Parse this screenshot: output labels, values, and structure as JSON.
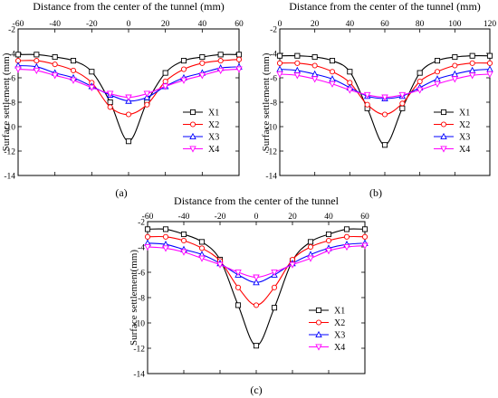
{
  "figure": {
    "background": "#ffffff"
  },
  "chart_data": [
    {
      "type": "line",
      "panel_label": "(a)",
      "title": "Distance from the center of the tunnel (mm)",
      "ylabel": "Surface settlement (mm)",
      "xlabel": "",
      "xlim": [
        -60,
        60
      ],
      "ylim": [
        -14,
        -2
      ],
      "xticks": [
        -60,
        -40,
        -20,
        0,
        20,
        40,
        60
      ],
      "yticks": [
        -2,
        -4,
        -6,
        -8,
        -10,
        -12,
        -14
      ],
      "legend_position": "bottom-right",
      "grid": false,
      "series": [
        {
          "name": "X1",
          "color": "#000000",
          "marker": "square",
          "x": [
            -60,
            -50,
            -40,
            -30,
            -20,
            -10,
            0,
            10,
            20,
            30,
            40,
            50,
            60
          ],
          "y": [
            -4.1,
            -4.1,
            -4.3,
            -4.6,
            -5.5,
            -8.0,
            -11.2,
            -8.0,
            -5.6,
            -4.6,
            -4.3,
            -4.1,
            -4.1
          ]
        },
        {
          "name": "X2",
          "color": "#ff0000",
          "marker": "circle",
          "x": [
            -60,
            -50,
            -40,
            -30,
            -20,
            -10,
            0,
            10,
            20,
            30,
            40,
            50,
            60
          ],
          "y": [
            -4.6,
            -4.6,
            -4.9,
            -5.4,
            -6.4,
            -8.4,
            -9.0,
            -8.2,
            -6.3,
            -5.3,
            -4.8,
            -4.6,
            -4.5
          ]
        },
        {
          "name": "X3",
          "color": "#0000ff",
          "marker": "triangle-up",
          "x": [
            -60,
            -50,
            -40,
            -30,
            -20,
            -10,
            0,
            10,
            20,
            30,
            40,
            50,
            60
          ],
          "y": [
            -5.0,
            -5.1,
            -5.6,
            -6.0,
            -6.7,
            -7.4,
            -7.9,
            -7.6,
            -6.7,
            -6.0,
            -5.6,
            -5.2,
            -5.1
          ]
        },
        {
          "name": "X4",
          "color": "#ff00ff",
          "marker": "triangle-down",
          "x": [
            -60,
            -50,
            -40,
            -30,
            -20,
            -10,
            0,
            10,
            20,
            30,
            40,
            50,
            60
          ],
          "y": [
            -5.3,
            -5.4,
            -5.8,
            -6.2,
            -6.8,
            -7.3,
            -7.6,
            -7.3,
            -6.7,
            -6.2,
            -5.8,
            -5.4,
            -5.3
          ]
        }
      ]
    },
    {
      "type": "line",
      "panel_label": "(b)",
      "title": "Distance from the center of the tunnel (mm)",
      "ylabel": "Surface settlement (mm)",
      "xlabel": "",
      "xlim": [
        0,
        120
      ],
      "ylim": [
        -14,
        -2
      ],
      "xticks": [
        0,
        20,
        40,
        60,
        80,
        100,
        120
      ],
      "yticks": [
        -2,
        -4,
        -6,
        -8,
        -10,
        -12,
        -14
      ],
      "legend_position": "bottom-right",
      "grid": false,
      "series": [
        {
          "name": "X1",
          "color": "#000000",
          "marker": "square",
          "x": [
            0,
            10,
            20,
            30,
            40,
            50,
            60,
            70,
            80,
            90,
            100,
            110,
            120
          ],
          "y": [
            -4.2,
            -4.2,
            -4.3,
            -4.6,
            -5.5,
            -8.5,
            -11.5,
            -8.5,
            -5.6,
            -4.6,
            -4.3,
            -4.2,
            -4.2
          ]
        },
        {
          "name": "X2",
          "color": "#ff0000",
          "marker": "circle",
          "x": [
            0,
            10,
            20,
            30,
            40,
            50,
            60,
            70,
            80,
            90,
            100,
            110,
            120
          ],
          "y": [
            -4.8,
            -4.8,
            -5.0,
            -5.5,
            -6.4,
            -8.2,
            -9.0,
            -8.1,
            -6.3,
            -5.5,
            -5.0,
            -4.8,
            -4.8
          ]
        },
        {
          "name": "X3",
          "color": "#0000ff",
          "marker": "triangle-up",
          "x": [
            0,
            10,
            20,
            30,
            40,
            50,
            60,
            70,
            80,
            90,
            100,
            110,
            120
          ],
          "y": [
            -5.3,
            -5.4,
            -5.7,
            -6.1,
            -6.8,
            -7.5,
            -7.7,
            -7.5,
            -6.8,
            -6.1,
            -5.7,
            -5.4,
            -5.3
          ]
        },
        {
          "name": "X4",
          "color": "#ff00ff",
          "marker": "triangle-down",
          "x": [
            0,
            10,
            20,
            30,
            40,
            50,
            60,
            70,
            80,
            90,
            100,
            110,
            120
          ],
          "y": [
            -5.7,
            -5.8,
            -6.1,
            -6.5,
            -7.0,
            -7.4,
            -7.6,
            -7.4,
            -7.0,
            -6.5,
            -6.1,
            -5.8,
            -5.7
          ]
        }
      ]
    },
    {
      "type": "line",
      "panel_label": "(c)",
      "title": "Distance from the center of the tunnel",
      "ylabel": "Surface settlement(mm)",
      "xlabel": "",
      "xlim": [
        -60,
        60
      ],
      "ylim": [
        -14,
        -2
      ],
      "xticks": [
        -60,
        -40,
        -20,
        0,
        20,
        40,
        60
      ],
      "yticks": [
        -2,
        -4,
        -6,
        -8,
        -10,
        -12,
        -14
      ],
      "legend_position": "bottom-right",
      "grid": false,
      "series": [
        {
          "name": "X1",
          "color": "#000000",
          "marker": "square",
          "x": [
            -60,
            -50,
            -40,
            -30,
            -20,
            -10,
            0,
            10,
            20,
            30,
            40,
            50,
            60
          ],
          "y": [
            -2.6,
            -2.6,
            -3.0,
            -3.6,
            -5.0,
            -8.6,
            -11.8,
            -8.8,
            -5.1,
            -3.6,
            -3.0,
            -2.6,
            -2.6
          ]
        },
        {
          "name": "X2",
          "color": "#ff0000",
          "marker": "circle",
          "x": [
            -60,
            -50,
            -40,
            -30,
            -20,
            -10,
            0,
            10,
            20,
            30,
            40,
            50,
            60
          ],
          "y": [
            -3.2,
            -3.2,
            -3.5,
            -4.1,
            -5.1,
            -7.2,
            -8.6,
            -7.2,
            -5.0,
            -4.0,
            -3.5,
            -3.2,
            -3.2
          ]
        },
        {
          "name": "X3",
          "color": "#0000ff",
          "marker": "triangle-up",
          "x": [
            -60,
            -50,
            -40,
            -30,
            -20,
            -10,
            0,
            10,
            20,
            30,
            40,
            50,
            60
          ],
          "y": [
            -3.7,
            -3.8,
            -4.2,
            -4.6,
            -5.3,
            -6.2,
            -6.8,
            -6.2,
            -5.3,
            -4.6,
            -4.1,
            -3.8,
            -3.7
          ]
        },
        {
          "name": "X4",
          "color": "#ff00ff",
          "marker": "triangle-down",
          "x": [
            -60,
            -50,
            -40,
            -30,
            -20,
            -10,
            0,
            10,
            20,
            30,
            40,
            50,
            60
          ],
          "y": [
            -4.0,
            -4.1,
            -4.4,
            -4.9,
            -5.4,
            -6.0,
            -6.4,
            -6.0,
            -5.4,
            -4.9,
            -4.3,
            -4.0,
            -3.9
          ]
        }
      ]
    }
  ]
}
